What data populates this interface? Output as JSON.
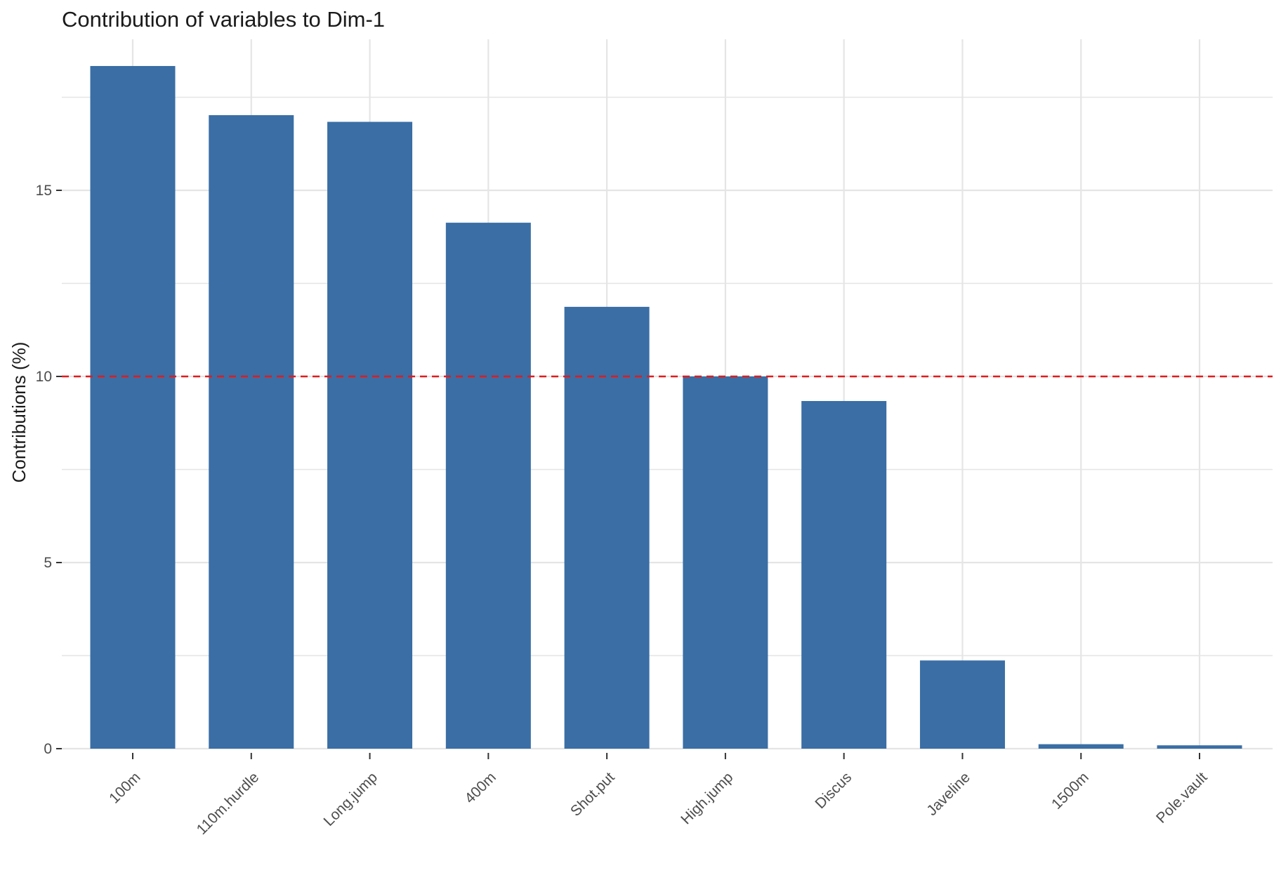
{
  "chart_data": {
    "type": "bar",
    "title": "Contribution of variables to Dim-1",
    "xlabel": "",
    "ylabel": "Contributions (%)",
    "categories": [
      "100m",
      "110m.hurdle",
      "Long.jump",
      "400m",
      "Shot.put",
      "High.jump",
      "Discus",
      "Javeline",
      "1500m",
      "Pole.vault"
    ],
    "values": [
      18.34,
      17.02,
      16.84,
      14.13,
      11.87,
      10.0,
      9.34,
      2.37,
      0.12,
      0.09
    ],
    "ylim": [
      0,
      18.6
    ],
    "yticks": [
      0,
      5,
      10,
      15
    ],
    "reference_line": {
      "value": 10,
      "style": "dashed",
      "color": "#e41a1c"
    },
    "grid": true,
    "colors": {
      "bar": "#3a6ea5",
      "grid": "#e5e5e5",
      "text": "#1a1a1a",
      "tick_text": "#4d4d4d"
    }
  }
}
